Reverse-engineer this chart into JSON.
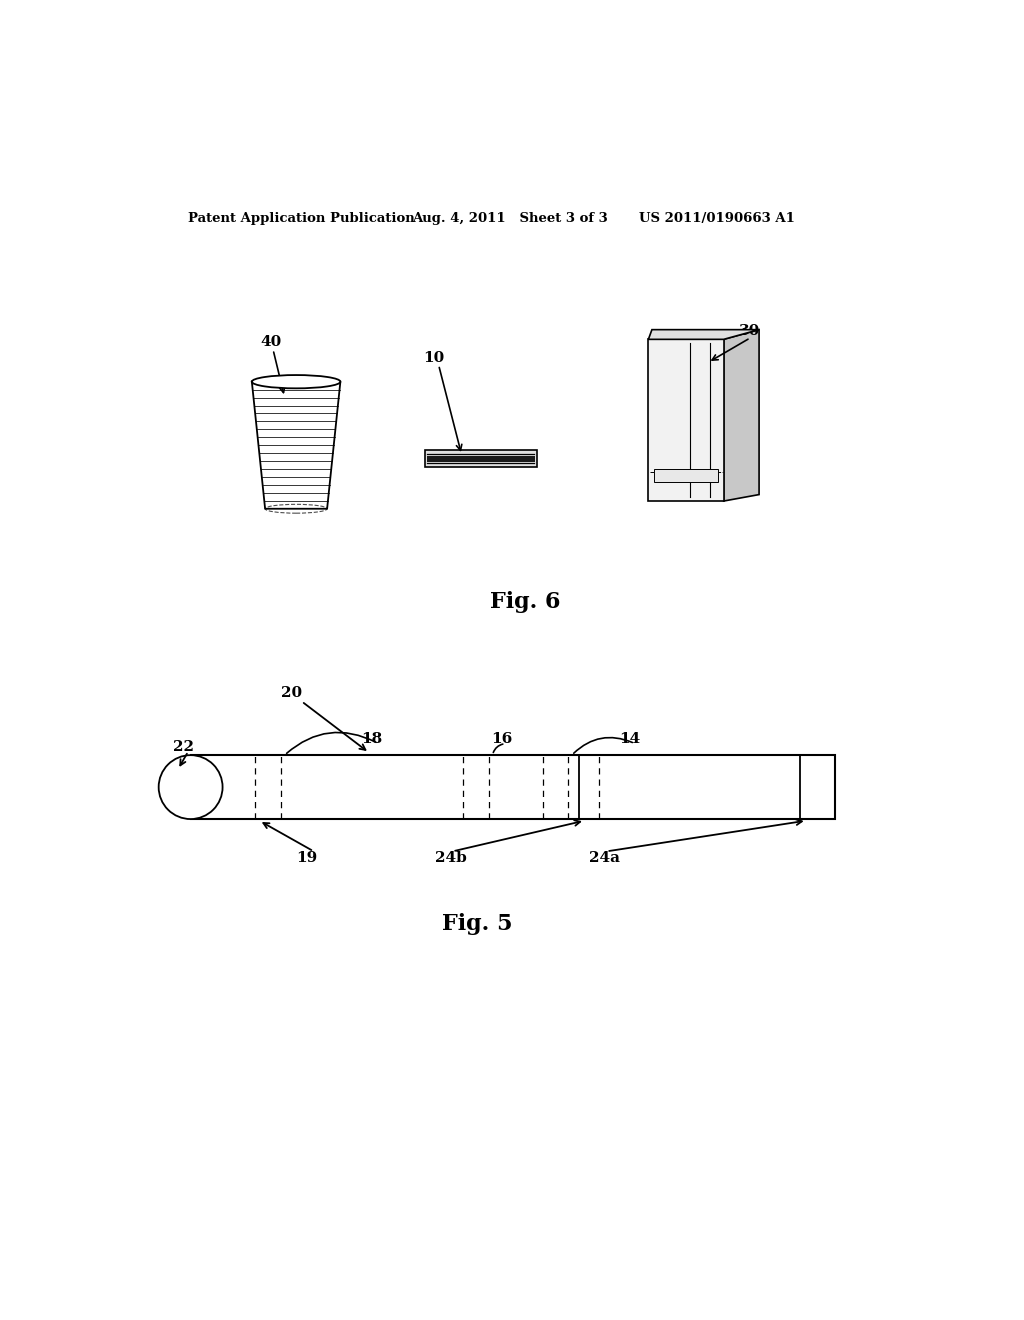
{
  "background_color": "#ffffff",
  "header_text_left": "Patent Application Publication",
  "header_text_mid": "Aug. 4, 2011   Sheet 3 of 3",
  "header_text_right": "US 2011/0190663 A1",
  "fig6_label": "Fig. 6",
  "fig5_label": "Fig. 5",
  "label_40": "40",
  "label_10": "10",
  "label_30": "30",
  "label_20": "20",
  "label_22": "22",
  "label_18": "18",
  "label_16": "16",
  "label_14": "14",
  "label_19": "19",
  "label_24b": "24b",
  "label_24a": "24a"
}
